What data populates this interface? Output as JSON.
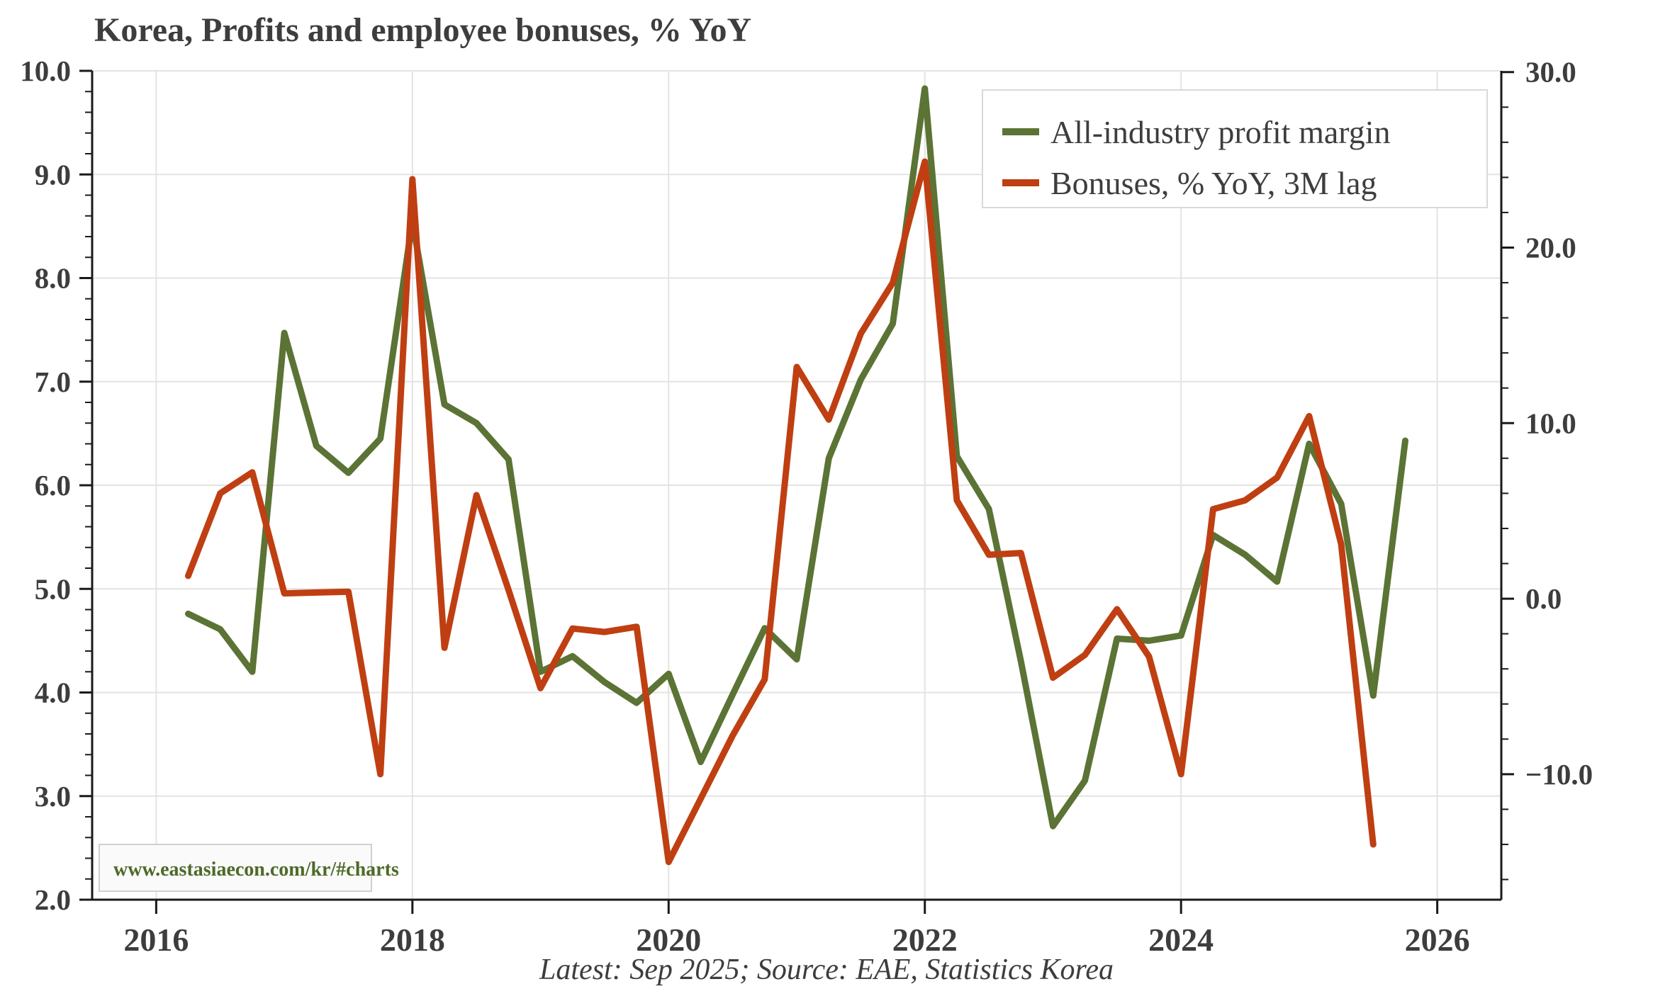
{
  "title": "Korea, Profits and employee bonuses, % YoY",
  "footer": "Latest: Sep 2025; Source: EAE, Statistics Korea",
  "watermark": "www.eastasiaecon.com/kr/#charts",
  "colors": {
    "profit_line": "#5b7334",
    "bonus_line": "#bf3f12",
    "text": "#3d3d3d",
    "grid": "#e3e3e3",
    "spine": "#1a1a1a",
    "watermark_text": "#4e6a28",
    "legend_border": "#d9d9d9",
    "background": "#ffffff"
  },
  "legend": {
    "items": [
      {
        "label": "All-industry profit margin"
      },
      {
        "label": "Bonuses, % YoY, 3M lag"
      }
    ]
  },
  "chart_data": {
    "type": "line",
    "title": "Korea, Profits and employee bonuses, % YoY",
    "grid": true,
    "legend_position": "upper right",
    "x_range": [
      2015.5,
      2026.5
    ],
    "x_ticks": [
      2016,
      2018,
      2020,
      2022,
      2024,
      2026
    ],
    "left_axis": {
      "min": 2.0,
      "max": 10.0,
      "majors": [
        2,
        3,
        4,
        5,
        6,
        7,
        8,
        9,
        10
      ],
      "minor_step": 0.2
    },
    "right_axis": {
      "min": -17.15,
      "max": 30.07,
      "majors": [
        -10,
        0,
        10,
        20,
        30
      ],
      "minor_step": 2
    },
    "series": [
      {
        "name": "All-industry profit margin",
        "axis": "left",
        "color": "#5b7334",
        "x": [
          2016.25,
          2016.5,
          2016.75,
          2017.0,
          2017.25,
          2017.5,
          2017.75,
          2018.0,
          2018.25,
          2018.5,
          2018.75,
          2019.0,
          2019.25,
          2019.5,
          2019.75,
          2020.0,
          2020.25,
          2020.5,
          2020.75,
          2021.0,
          2021.25,
          2021.5,
          2021.75,
          2022.0,
          2022.25,
          2022.5,
          2022.75,
          2023.0,
          2023.25,
          2023.5,
          2023.75,
          2024.0,
          2024.25,
          2024.5,
          2024.75,
          2025.0,
          2025.25,
          2025.5,
          2025.75
        ],
        "values": [
          4.76,
          4.61,
          4.2,
          7.47,
          6.38,
          6.12,
          6.45,
          8.55,
          6.78,
          6.6,
          6.25,
          4.2,
          4.35,
          4.1,
          3.9,
          4.18,
          3.33,
          3.98,
          4.62,
          4.32,
          6.26,
          7.02,
          7.56,
          9.83,
          6.28,
          5.77,
          4.3,
          2.71,
          3.15,
          4.52,
          4.5,
          4.55,
          5.52,
          5.33,
          5.07,
          6.4,
          5.82,
          3.97,
          6.43
        ]
      },
      {
        "name": "Bonuses, % YoY, 3M lag",
        "axis": "right",
        "color": "#bf3f12",
        "x": [
          2016.25,
          2016.5,
          2016.75,
          2017.0,
          2017.25,
          2017.5,
          2017.75,
          2018.0,
          2018.25,
          2018.5,
          2018.75,
          2019.0,
          2019.25,
          2019.5,
          2019.75,
          2020.0,
          2020.25,
          2020.5,
          2020.75,
          2021.0,
          2021.25,
          2021.5,
          2021.75,
          2022.0,
          2022.25,
          2022.5,
          2022.75,
          2023.0,
          2023.25,
          2023.5,
          2023.75,
          2024.0,
          2024.25,
          2024.5,
          2024.75,
          2025.0,
          2025.25,
          2025.5
        ],
        "values": [
          1.3,
          6.0,
          7.2,
          0.3,
          0.35,
          0.4,
          -10.0,
          23.9,
          -2.8,
          5.9,
          0.5,
          -5.1,
          -1.7,
          -1.9,
          -1.6,
          -15.0,
          -11.4,
          -7.8,
          -4.6,
          13.2,
          10.2,
          15.1,
          18.0,
          24.9,
          5.6,
          2.5,
          2.6,
          -4.5,
          -3.2,
          -0.6,
          -3.3,
          -10.0,
          5.1,
          5.6,
          6.9,
          10.4,
          3.1,
          -14.0
        ]
      }
    ]
  }
}
